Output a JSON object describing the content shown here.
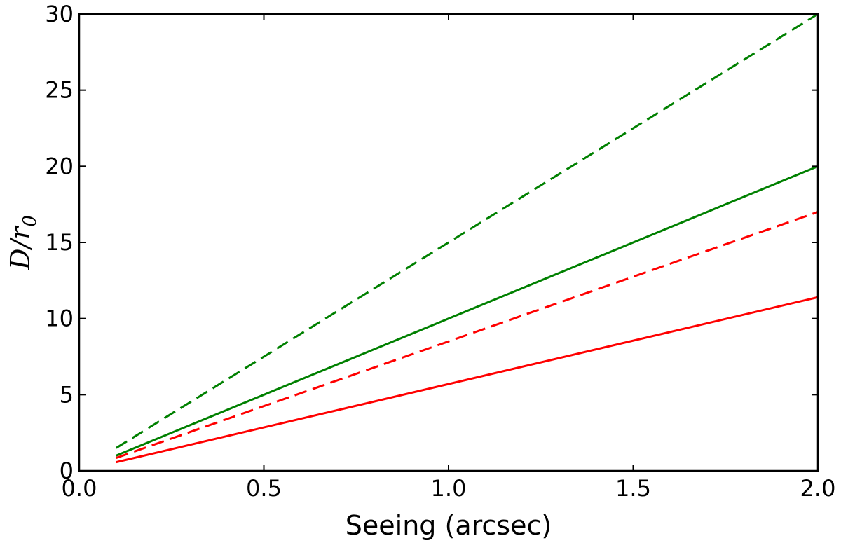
{
  "chart_data": {
    "type": "line",
    "xlabel": "Seeing (arcsec)",
    "ylabel": {
      "main": "D/r",
      "subscript": "0"
    },
    "xlim": [
      0.0,
      2.0
    ],
    "ylim": [
      0,
      30
    ],
    "xticks": [
      "0.0",
      "0.5",
      "1.0",
      "1.5",
      "2.0"
    ],
    "yticks": [
      "0",
      "5",
      "10",
      "15",
      "20",
      "25",
      "30"
    ],
    "grid": false,
    "legend": "none",
    "series": [
      {
        "color": "#008000",
        "dash": "dashed",
        "x": [
          0.1,
          2.0
        ],
        "y": [
          1.5,
          30.0
        ]
      },
      {
        "color": "#008000",
        "dash": "solid",
        "x": [
          0.1,
          2.0
        ],
        "y": [
          1.0,
          20.0
        ]
      },
      {
        "color": "#ff0000",
        "dash": "dashed",
        "x": [
          0.1,
          2.0
        ],
        "y": [
          0.85,
          17.0
        ]
      },
      {
        "color": "#ff0000",
        "dash": "solid",
        "x": [
          0.1,
          2.0
        ],
        "y": [
          0.57,
          11.4
        ]
      }
    ]
  }
}
